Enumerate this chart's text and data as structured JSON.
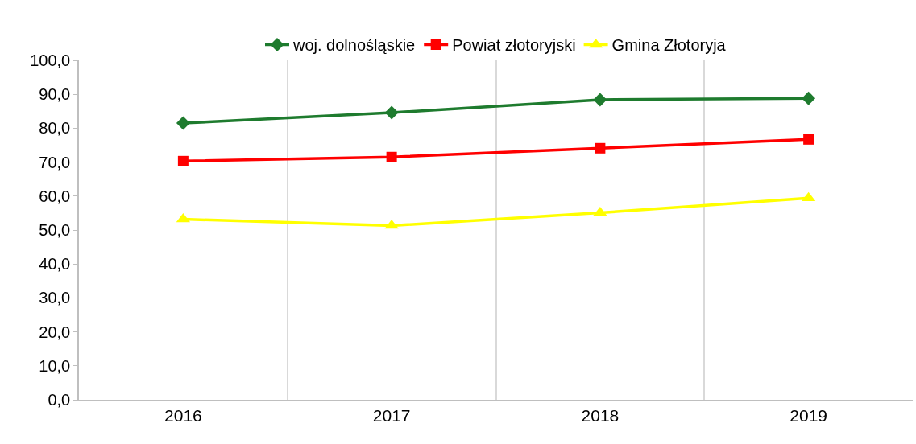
{
  "chart_data": {
    "type": "line",
    "categories": [
      "2016",
      "2017",
      "2018",
      "2019"
    ],
    "series": [
      {
        "name": "woj. dolnośląskie",
        "color": "#1e7b2e",
        "marker": "diamond",
        "values": [
          81.5,
          84.6,
          88.4,
          88.8
        ]
      },
      {
        "name": "Powiat złotoryjski",
        "color": "#ff0000",
        "marker": "square",
        "values": [
          70.3,
          71.5,
          74.1,
          76.7
        ]
      },
      {
        "name": "Gmina Złotoryja",
        "color": "#ffff00",
        "marker": "triangle",
        "values": [
          53.2,
          51.3,
          55.1,
          59.4
        ]
      }
    ],
    "ylim": [
      0,
      100
    ],
    "yticks": [
      {
        "value": 0,
        "label": "0,0"
      },
      {
        "value": 10,
        "label": "10,0"
      },
      {
        "value": 20,
        "label": "20,0"
      },
      {
        "value": 30,
        "label": "30,0"
      },
      {
        "value": 40,
        "label": "40,0"
      },
      {
        "value": 50,
        "label": "50,0"
      },
      {
        "value": 60,
        "label": "60,0"
      },
      {
        "value": 70,
        "label": "70,0"
      },
      {
        "value": 80,
        "label": "80,0"
      },
      {
        "value": 90,
        "label": "90,0"
      },
      {
        "value": 100,
        "label": "100,0"
      }
    ],
    "grid": "x",
    "legend": "top",
    "line_style": "solid"
  }
}
